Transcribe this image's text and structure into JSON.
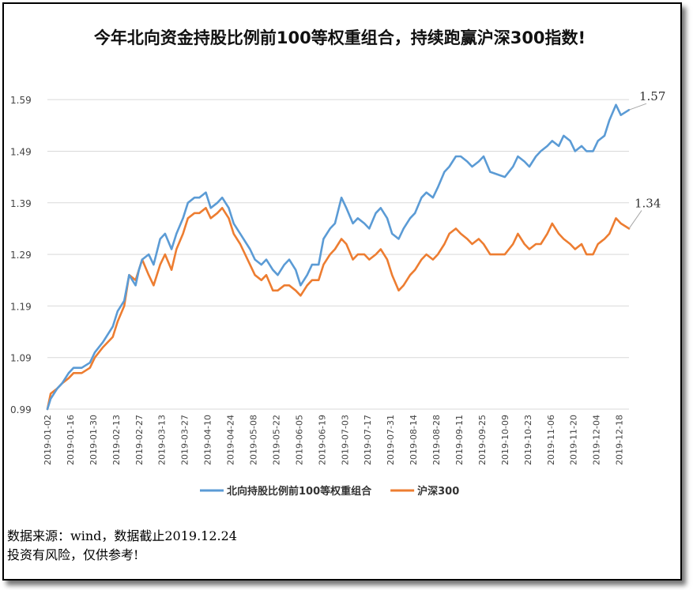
{
  "chart_data": {
    "type": "line",
    "title": "今年北向资金持股比例前100等权重组合，持续跑赢沪深300指数!",
    "y_ticks": [
      "0.99",
      "1.09",
      "1.19",
      "1.29",
      "1.39",
      "1.49",
      "1.59"
    ],
    "ylim": [
      0.99,
      1.63
    ],
    "x_ticks": [
      "2019-01-02",
      "2019-01-16",
      "2019-01-30",
      "2019-02-13",
      "2019-02-27",
      "2019-03-13",
      "2019-03-27",
      "2019-04-10",
      "2019-04-24",
      "2019-05-08",
      "2019-05-22",
      "2019-06-05",
      "2019-06-19",
      "2019-07-03",
      "2019-07-17",
      "2019-07-31",
      "2019-08-14",
      "2019-08-28",
      "2019-09-11",
      "2019-09-25",
      "2019-10-09",
      "2019-10-23",
      "2019-11-06",
      "2019-11-20",
      "2019-12-04",
      "2019-12-18"
    ],
    "grid": true,
    "legend_position": "bottom",
    "series": [
      {
        "name": "北向持股比例前100等权重组合",
        "color": "#5B9BD5",
        "end_label": "1.57",
        "points": [
          [
            "2019-01-02",
            0.99
          ],
          [
            "2019-01-04",
            1.01
          ],
          [
            "2019-01-08",
            1.03
          ],
          [
            "2019-01-11",
            1.04
          ],
          [
            "2019-01-15",
            1.06
          ],
          [
            "2019-01-18",
            1.07
          ],
          [
            "2019-01-23",
            1.07
          ],
          [
            "2019-01-28",
            1.08
          ],
          [
            "2019-01-31",
            1.1
          ],
          [
            "2019-02-05",
            1.12
          ],
          [
            "2019-02-11",
            1.15
          ],
          [
            "2019-02-14",
            1.18
          ],
          [
            "2019-02-18",
            1.2
          ],
          [
            "2019-02-21",
            1.25
          ],
          [
            "2019-02-25",
            1.23
          ],
          [
            "2019-02-27",
            1.26
          ],
          [
            "2019-03-01",
            1.28
          ],
          [
            "2019-03-05",
            1.29
          ],
          [
            "2019-03-08",
            1.27
          ],
          [
            "2019-03-12",
            1.32
          ],
          [
            "2019-03-15",
            1.33
          ],
          [
            "2019-03-19",
            1.3
          ],
          [
            "2019-03-22",
            1.33
          ],
          [
            "2019-03-26",
            1.36
          ],
          [
            "2019-03-29",
            1.39
          ],
          [
            "2019-04-02",
            1.4
          ],
          [
            "2019-04-05",
            1.4
          ],
          [
            "2019-04-09",
            1.41
          ],
          [
            "2019-04-12",
            1.38
          ],
          [
            "2019-04-16",
            1.39
          ],
          [
            "2019-04-19",
            1.4
          ],
          [
            "2019-04-23",
            1.38
          ],
          [
            "2019-04-26",
            1.35
          ],
          [
            "2019-04-30",
            1.33
          ],
          [
            "2019-05-06",
            1.3
          ],
          [
            "2019-05-09",
            1.28
          ],
          [
            "2019-05-13",
            1.27
          ],
          [
            "2019-05-16",
            1.28
          ],
          [
            "2019-05-20",
            1.26
          ],
          [
            "2019-05-23",
            1.25
          ],
          [
            "2019-05-27",
            1.27
          ],
          [
            "2019-05-30",
            1.28
          ],
          [
            "2019-06-03",
            1.26
          ],
          [
            "2019-06-06",
            1.23
          ],
          [
            "2019-06-10",
            1.25
          ],
          [
            "2019-06-13",
            1.27
          ],
          [
            "2019-06-17",
            1.27
          ],
          [
            "2019-06-20",
            1.32
          ],
          [
            "2019-06-24",
            1.34
          ],
          [
            "2019-06-27",
            1.35
          ],
          [
            "2019-07-01",
            1.4
          ],
          [
            "2019-07-04",
            1.38
          ],
          [
            "2019-07-08",
            1.35
          ],
          [
            "2019-07-11",
            1.36
          ],
          [
            "2019-07-15",
            1.35
          ],
          [
            "2019-07-18",
            1.34
          ],
          [
            "2019-07-22",
            1.37
          ],
          [
            "2019-07-25",
            1.38
          ],
          [
            "2019-07-29",
            1.36
          ],
          [
            "2019-08-01",
            1.33
          ],
          [
            "2019-08-05",
            1.32
          ],
          [
            "2019-08-08",
            1.34
          ],
          [
            "2019-08-12",
            1.36
          ],
          [
            "2019-08-15",
            1.37
          ],
          [
            "2019-08-19",
            1.4
          ],
          [
            "2019-08-22",
            1.41
          ],
          [
            "2019-08-26",
            1.4
          ],
          [
            "2019-08-29",
            1.42
          ],
          [
            "2019-09-02",
            1.45
          ],
          [
            "2019-09-05",
            1.46
          ],
          [
            "2019-09-09",
            1.48
          ],
          [
            "2019-09-12",
            1.48
          ],
          [
            "2019-09-16",
            1.47
          ],
          [
            "2019-09-19",
            1.46
          ],
          [
            "2019-09-23",
            1.47
          ],
          [
            "2019-09-26",
            1.48
          ],
          [
            "2019-09-30",
            1.45
          ],
          [
            "2019-10-09",
            1.44
          ],
          [
            "2019-10-14",
            1.46
          ],
          [
            "2019-10-17",
            1.48
          ],
          [
            "2019-10-21",
            1.47
          ],
          [
            "2019-10-24",
            1.46
          ],
          [
            "2019-10-28",
            1.48
          ],
          [
            "2019-10-31",
            1.49
          ],
          [
            "2019-11-04",
            1.5
          ],
          [
            "2019-11-07",
            1.51
          ],
          [
            "2019-11-11",
            1.5
          ],
          [
            "2019-11-14",
            1.52
          ],
          [
            "2019-11-18",
            1.51
          ],
          [
            "2019-11-21",
            1.49
          ],
          [
            "2019-11-25",
            1.5
          ],
          [
            "2019-11-28",
            1.49
          ],
          [
            "2019-12-02",
            1.49
          ],
          [
            "2019-12-05",
            1.51
          ],
          [
            "2019-12-09",
            1.52
          ],
          [
            "2019-12-12",
            1.55
          ],
          [
            "2019-12-16",
            1.58
          ],
          [
            "2019-12-19",
            1.56
          ],
          [
            "2019-12-24",
            1.57
          ]
        ]
      },
      {
        "name": "沪深300",
        "color": "#ED7D31",
        "end_label": "1.34",
        "points": [
          [
            "2019-01-02",
            0.99
          ],
          [
            "2019-01-04",
            1.02
          ],
          [
            "2019-01-08",
            1.03
          ],
          [
            "2019-01-11",
            1.04
          ],
          [
            "2019-01-15",
            1.05
          ],
          [
            "2019-01-18",
            1.06
          ],
          [
            "2019-01-23",
            1.06
          ],
          [
            "2019-01-28",
            1.07
          ],
          [
            "2019-01-31",
            1.09
          ],
          [
            "2019-02-05",
            1.11
          ],
          [
            "2019-02-11",
            1.13
          ],
          [
            "2019-02-14",
            1.16
          ],
          [
            "2019-02-18",
            1.19
          ],
          [
            "2019-02-21",
            1.25
          ],
          [
            "2019-02-25",
            1.24
          ],
          [
            "2019-02-27",
            1.26
          ],
          [
            "2019-03-01",
            1.28
          ],
          [
            "2019-03-05",
            1.25
          ],
          [
            "2019-03-08",
            1.23
          ],
          [
            "2019-03-12",
            1.27
          ],
          [
            "2019-03-15",
            1.29
          ],
          [
            "2019-03-19",
            1.26
          ],
          [
            "2019-03-22",
            1.3
          ],
          [
            "2019-03-26",
            1.33
          ],
          [
            "2019-03-29",
            1.36
          ],
          [
            "2019-04-02",
            1.37
          ],
          [
            "2019-04-05",
            1.37
          ],
          [
            "2019-04-09",
            1.38
          ],
          [
            "2019-04-12",
            1.36
          ],
          [
            "2019-04-16",
            1.37
          ],
          [
            "2019-04-19",
            1.38
          ],
          [
            "2019-04-23",
            1.36
          ],
          [
            "2019-04-26",
            1.33
          ],
          [
            "2019-04-30",
            1.31
          ],
          [
            "2019-05-06",
            1.27
          ],
          [
            "2019-05-09",
            1.25
          ],
          [
            "2019-05-13",
            1.24
          ],
          [
            "2019-05-16",
            1.25
          ],
          [
            "2019-05-20",
            1.22
          ],
          [
            "2019-05-23",
            1.22
          ],
          [
            "2019-05-27",
            1.23
          ],
          [
            "2019-05-30",
            1.23
          ],
          [
            "2019-06-03",
            1.22
          ],
          [
            "2019-06-06",
            1.21
          ],
          [
            "2019-06-10",
            1.23
          ],
          [
            "2019-06-13",
            1.24
          ],
          [
            "2019-06-17",
            1.24
          ],
          [
            "2019-06-20",
            1.27
          ],
          [
            "2019-06-24",
            1.29
          ],
          [
            "2019-06-27",
            1.3
          ],
          [
            "2019-07-01",
            1.32
          ],
          [
            "2019-07-04",
            1.31
          ],
          [
            "2019-07-08",
            1.28
          ],
          [
            "2019-07-11",
            1.29
          ],
          [
            "2019-07-15",
            1.29
          ],
          [
            "2019-07-18",
            1.28
          ],
          [
            "2019-07-22",
            1.29
          ],
          [
            "2019-07-25",
            1.3
          ],
          [
            "2019-07-29",
            1.28
          ],
          [
            "2019-08-01",
            1.25
          ],
          [
            "2019-08-05",
            1.22
          ],
          [
            "2019-08-08",
            1.23
          ],
          [
            "2019-08-12",
            1.25
          ],
          [
            "2019-08-15",
            1.26
          ],
          [
            "2019-08-19",
            1.28
          ],
          [
            "2019-08-22",
            1.29
          ],
          [
            "2019-08-26",
            1.28
          ],
          [
            "2019-08-29",
            1.29
          ],
          [
            "2019-09-02",
            1.31
          ],
          [
            "2019-09-05",
            1.33
          ],
          [
            "2019-09-09",
            1.34
          ],
          [
            "2019-09-12",
            1.33
          ],
          [
            "2019-09-16",
            1.32
          ],
          [
            "2019-09-19",
            1.31
          ],
          [
            "2019-09-23",
            1.32
          ],
          [
            "2019-09-26",
            1.31
          ],
          [
            "2019-09-30",
            1.29
          ],
          [
            "2019-10-09",
            1.29
          ],
          [
            "2019-10-14",
            1.31
          ],
          [
            "2019-10-17",
            1.33
          ],
          [
            "2019-10-21",
            1.31
          ],
          [
            "2019-10-24",
            1.3
          ],
          [
            "2019-10-28",
            1.31
          ],
          [
            "2019-10-31",
            1.31
          ],
          [
            "2019-11-04",
            1.33
          ],
          [
            "2019-11-07",
            1.35
          ],
          [
            "2019-11-11",
            1.33
          ],
          [
            "2019-11-14",
            1.32
          ],
          [
            "2019-11-18",
            1.31
          ],
          [
            "2019-11-21",
            1.3
          ],
          [
            "2019-11-25",
            1.31
          ],
          [
            "2019-11-28",
            1.29
          ],
          [
            "2019-12-02",
            1.29
          ],
          [
            "2019-12-05",
            1.31
          ],
          [
            "2019-12-09",
            1.32
          ],
          [
            "2019-12-12",
            1.33
          ],
          [
            "2019-12-16",
            1.36
          ],
          [
            "2019-12-19",
            1.35
          ],
          [
            "2019-12-24",
            1.34
          ]
        ]
      }
    ]
  },
  "footer": {
    "source": "数据来源：wind，数据截止2019.12.24",
    "disclaimer": "投资有风险，仅供参考!"
  }
}
